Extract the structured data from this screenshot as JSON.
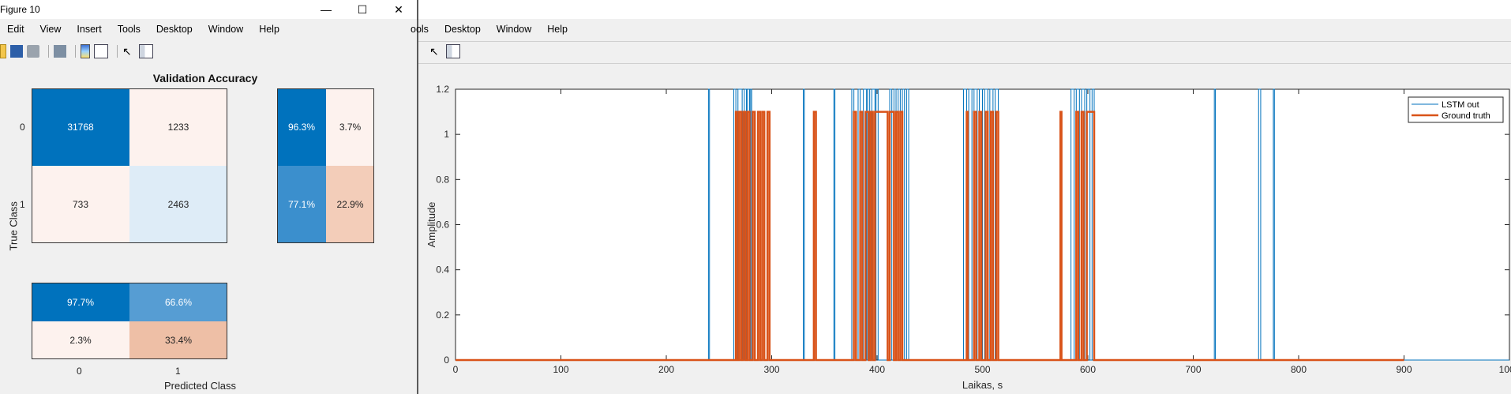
{
  "left_window": {
    "title": "Figure 10",
    "window_buttons": {
      "minimize": "—",
      "maximize": "☐",
      "close": "✕"
    },
    "menu": [
      "Edit",
      "View",
      "Insert",
      "Tools",
      "Desktop",
      "Window",
      "Help"
    ],
    "toolbar_icons": [
      "new-file-icon",
      "save-icon",
      "print-icon",
      "print-preview-icon",
      "colorbar-icon",
      "legend-icon",
      "pointer-icon",
      "property-editor-icon"
    ],
    "figure": {
      "title": "Validation Accuracy",
      "ylabel": "True Class",
      "xlabel": "Predicted Class",
      "row_labels": [
        "0",
        "1"
      ],
      "col_labels": [
        "0",
        "1"
      ],
      "matrix": [
        [
          "31768",
          "1233"
        ],
        [
          "733",
          "2463"
        ]
      ],
      "row_summary": [
        [
          "96.3%",
          "3.7%"
        ],
        [
          "77.1%",
          "22.9%"
        ]
      ],
      "col_summary": [
        [
          "97.7%",
          "66.6%"
        ],
        [
          "2.3%",
          "33.4%"
        ]
      ],
      "colors": {
        "dark_blue": "#0072bd",
        "mid_blue": "#3b8fcd",
        "light_blue_2": "#569dd3",
        "light_blue": "#deecf7",
        "pale": "#fdf2ee",
        "salmon": "#f3cdb9",
        "salmon_dark": "#eebfa6"
      }
    }
  },
  "right_window": {
    "menu": [
      "ools",
      "Desktop",
      "Window",
      "Help"
    ],
    "toolbar_icons": [
      "pointer-icon",
      "property-editor-icon"
    ],
    "chart_data": {
      "type": "line",
      "xlabel": "Laikas, s",
      "ylabel": "Amplitude",
      "xlim": [
        0,
        1000
      ],
      "ylim": [
        0,
        1.2
      ],
      "xticks": [
        "0",
        "100",
        "200",
        "300",
        "400",
        "500",
        "600",
        "700",
        "800",
        "900",
        "1000"
      ],
      "yticks": [
        "0",
        "0.2",
        "0.4",
        "0.6",
        "0.8",
        "1",
        "1.2"
      ],
      "legend": {
        "placement": "top-right",
        "entries": [
          "LSTM out",
          "Ground truth"
        ]
      },
      "series": [
        {
          "name": "LSTM out",
          "color": "#0072bd",
          "pulses": [
            [
              240,
              241
            ],
            [
              264,
              266
            ],
            [
              268,
              272
            ],
            [
              274,
              276
            ],
            [
              277,
              279
            ],
            [
              280,
              281
            ],
            [
              330,
              331
            ],
            [
              359,
              360
            ],
            [
              376,
              378
            ],
            [
              382,
              384
            ],
            [
              387,
              390
            ],
            [
              391,
              393
            ],
            [
              395,
              398
            ],
            [
              399,
              401
            ],
            [
              412,
              414
            ],
            [
              416,
              418
            ],
            [
              420,
              422
            ],
            [
              424,
              426
            ],
            [
              428,
              430
            ],
            [
              482,
              485
            ],
            [
              487,
              490
            ],
            [
              492,
              495
            ],
            [
              497,
              500
            ],
            [
              502,
              505
            ],
            [
              507,
              510
            ],
            [
              512,
              515
            ],
            [
              584,
              587
            ],
            [
              589,
              592
            ],
            [
              594,
              597
            ],
            [
              599,
              602
            ],
            [
              604,
              606
            ],
            [
              720,
              721
            ],
            [
              762,
              764
            ],
            [
              776,
              777
            ]
          ]
        },
        {
          "name": "Ground truth",
          "color": "#d95319",
          "pulses_value": 1.1,
          "pulses": [
            [
              266,
              267
            ],
            [
              269,
              271
            ],
            [
              273,
              275
            ],
            [
              277,
              279
            ],
            [
              282,
              284
            ],
            [
              287,
              289
            ],
            [
              291,
              293
            ],
            [
              296,
              298
            ],
            [
              340,
              342
            ],
            [
              378,
              380
            ],
            [
              384,
              386
            ],
            [
              389,
              392
            ],
            [
              394,
              396
            ],
            [
              398,
              410
            ],
            [
              412,
              416
            ],
            [
              418,
              420
            ],
            [
              422,
              424
            ],
            [
              485,
              486
            ],
            [
              492,
              494
            ],
            [
              497,
              499
            ],
            [
              503,
              505
            ],
            [
              508,
              510
            ],
            [
              513,
              515
            ],
            [
              574,
              575
            ],
            [
              589,
              591
            ],
            [
              594,
              596
            ],
            [
              599,
              606
            ]
          ]
        }
      ]
    }
  }
}
